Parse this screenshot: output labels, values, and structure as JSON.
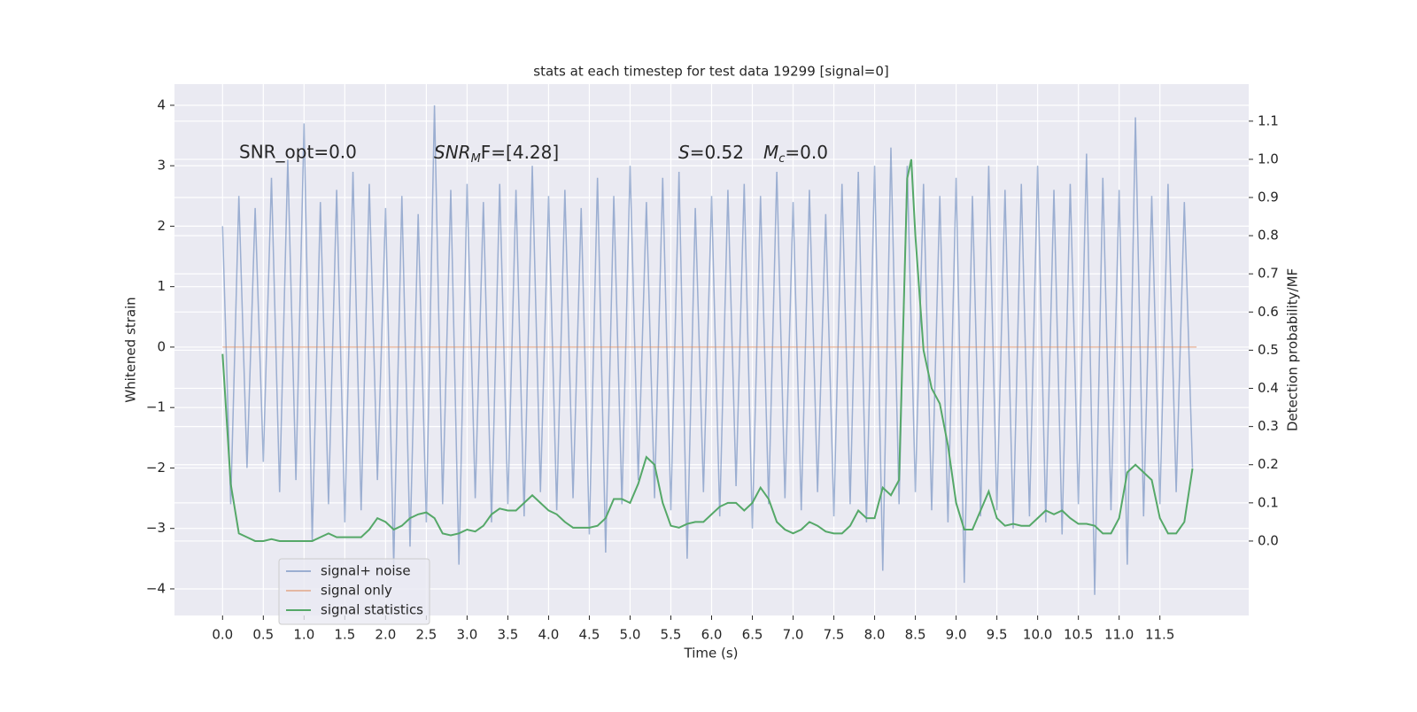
{
  "chart_data": {
    "type": "line",
    "title": "stats at each timestep for test data 19299 [signal=0]",
    "xlabel": "Time (s)",
    "ylabel": "Whitened strain",
    "y2label": "Detection probability/MF",
    "annotations": [
      "SNR_opt=0.0",
      [
        "SNR",
        "M",
        "F=[4.28]"
      ],
      [
        "S",
        "=0.52",
        "M",
        "c",
        "=0.0"
      ]
    ],
    "xlim": [
      -0.59,
      12.59
    ],
    "ylim": [
      -4.44,
      4.35
    ],
    "y2lim": [
      -0.195,
      1.197
    ],
    "xticks": [
      {
        "value": 0,
        "label": "0.0"
      },
      0.5,
      {
        "value": 1,
        "label": "1.0"
      },
      1.5,
      {
        "value": 2,
        "label": "2.0"
      },
      2.5,
      {
        "value": 3,
        "label": "3.0"
      },
      3.5,
      {
        "value": 4,
        "label": "4.0"
      },
      4.5,
      {
        "value": 5,
        "label": "5.0"
      },
      5.5,
      {
        "value": 6,
        "label": "6.0"
      },
      6.5,
      {
        "value": 7,
        "label": "7.0"
      },
      7.5,
      {
        "value": 8,
        "label": "8.0"
      },
      8.5,
      {
        "value": 9,
        "label": "9.0"
      },
      9.5,
      {
        "value": 10,
        "label": "10.0"
      },
      10.5,
      {
        "value": 11,
        "label": "11.0"
      },
      11.5
    ],
    "yticks": [
      {
        "value": -4,
        "label": "−4"
      },
      {
        "value": -3,
        "label": "−3"
      },
      {
        "value": -2,
        "label": "−2"
      },
      {
        "value": -1,
        "label": "−1"
      },
      0,
      1,
      2,
      3,
      4
    ],
    "y2ticks": [
      {
        "value": 0,
        "label": "0.0"
      },
      0.1,
      0.2,
      0.3,
      0.4,
      0.5,
      0.6,
      0.7,
      0.8,
      0.9,
      {
        "value": 1,
        "label": "1.0"
      },
      1.1
    ],
    "grid": true,
    "legend_loc": "lower left",
    "series": [
      {
        "name": "signal+ noise",
        "color": "#4c72b0",
        "x": [
          0.0,
          0.1,
          0.2,
          0.3,
          0.4,
          0.5,
          0.6,
          0.7,
          0.8,
          0.9,
          1.0,
          1.1,
          1.2,
          1.3,
          1.4,
          1.5,
          1.6,
          1.7,
          1.8,
          1.9,
          2.0,
          2.1,
          2.2,
          2.3,
          2.4,
          2.5,
          2.6,
          2.7,
          2.8,
          2.9,
          3.0,
          3.1,
          3.2,
          3.3,
          3.4,
          3.5,
          3.6,
          3.7,
          3.8,
          3.9,
          4.0,
          4.1,
          4.2,
          4.3,
          4.4,
          4.5,
          4.6,
          4.7,
          4.8,
          4.9,
          5.0,
          5.1,
          5.2,
          5.3,
          5.4,
          5.5,
          5.6,
          5.7,
          5.8,
          5.9,
          6.0,
          6.1,
          6.2,
          6.3,
          6.4,
          6.5,
          6.6,
          6.7,
          6.8,
          6.9,
          7.0,
          7.1,
          7.2,
          7.3,
          7.4,
          7.5,
          7.6,
          7.7,
          7.8,
          7.9,
          8.0,
          8.1,
          8.2,
          8.3,
          8.4,
          8.5,
          8.6,
          8.7,
          8.8,
          8.9,
          9.0,
          9.1,
          9.2,
          9.3,
          9.4,
          9.5,
          9.6,
          9.7,
          9.8,
          9.9,
          10.0,
          10.1,
          10.2,
          10.3,
          10.4,
          10.5,
          10.6,
          10.7,
          10.8,
          10.9,
          11.0,
          11.1,
          11.2,
          11.3,
          11.4,
          11.5,
          11.6,
          11.7,
          11.8,
          11.9
        ],
        "values": [
          2.0,
          -2.6,
          2.5,
          -2.0,
          2.3,
          -1.9,
          2.8,
          -2.4,
          3.1,
          -2.2,
          3.7,
          -3.2,
          2.4,
          -2.6,
          2.6,
          -2.9,
          2.9,
          -2.7,
          2.7,
          -2.2,
          2.3,
          -3.6,
          2.5,
          -3.3,
          2.2,
          -2.9,
          4.0,
          -2.6,
          2.6,
          -3.6,
          2.7,
          -2.5,
          2.4,
          -2.9,
          2.7,
          -2.6,
          2.6,
          -2.8,
          3.0,
          -2.4,
          2.5,
          -2.7,
          2.6,
          -2.5,
          2.3,
          -3.1,
          2.8,
          -3.4,
          2.5,
          -2.6,
          3.0,
          -2.2,
          2.4,
          -2.5,
          2.8,
          -2.7,
          2.9,
          -3.5,
          2.3,
          -2.4,
          2.5,
          -2.8,
          2.6,
          -2.3,
          2.7,
          -3.0,
          2.5,
          -2.6,
          2.9,
          -2.5,
          2.4,
          -2.7,
          2.6,
          -2.4,
          2.2,
          -2.8,
          2.7,
          -2.6,
          2.9,
          -2.9,
          3.0,
          -3.7,
          3.3,
          -2.6,
          3.0,
          -2.4,
          2.7,
          -2.7,
          2.5,
          -2.9,
          2.8,
          -3.9,
          2.5,
          -2.8,
          3.0,
          -2.7,
          2.6,
          -3.0,
          2.7,
          -2.8,
          3.0,
          -2.9,
          2.6,
          -3.1,
          2.7,
          -2.6,
          3.2,
          -4.1,
          2.8,
          -2.7,
          2.6,
          -3.6,
          3.8,
          -2.8,
          2.5,
          -2.6,
          2.7,
          -2.4,
          2.4,
          -2.0
        ]
      },
      {
        "name": "signal only",
        "color": "#dd8452",
        "x": [
          0.0,
          11.95
        ],
        "values": [
          0,
          0
        ]
      },
      {
        "name": "signal statistics",
        "color": "#55a868",
        "axis": "y2",
        "x": [
          0.0,
          0.1,
          0.2,
          0.3,
          0.4,
          0.5,
          0.6,
          0.7,
          0.8,
          0.9,
          1.0,
          1.1,
          1.2,
          1.3,
          1.4,
          1.5,
          1.6,
          1.7,
          1.8,
          1.9,
          2.0,
          2.1,
          2.2,
          2.3,
          2.4,
          2.5,
          2.6,
          2.7,
          2.8,
          2.9,
          3.0,
          3.1,
          3.2,
          3.3,
          3.4,
          3.5,
          3.6,
          3.7,
          3.8,
          3.9,
          4.0,
          4.1,
          4.2,
          4.3,
          4.4,
          4.5,
          4.6,
          4.7,
          4.8,
          4.9,
          5.0,
          5.1,
          5.2,
          5.3,
          5.4,
          5.5,
          5.6,
          5.7,
          5.8,
          5.9,
          6.0,
          6.1,
          6.2,
          6.3,
          6.4,
          6.5,
          6.6,
          6.7,
          6.8,
          6.9,
          7.0,
          7.1,
          7.2,
          7.3,
          7.4,
          7.5,
          7.6,
          7.7,
          7.8,
          7.9,
          8.0,
          8.1,
          8.2,
          8.3,
          8.4,
          8.45,
          8.5,
          8.6,
          8.7,
          8.8,
          8.9,
          9.0,
          9.1,
          9.2,
          9.3,
          9.4,
          9.5,
          9.6,
          9.7,
          9.8,
          9.9,
          10.0,
          10.1,
          10.2,
          10.3,
          10.4,
          10.5,
          10.6,
          10.7,
          10.8,
          10.9,
          11.0,
          11.1,
          11.2,
          11.3,
          11.4,
          11.5,
          11.6,
          11.7,
          11.8,
          11.9
        ],
        "values": [
          0.49,
          0.15,
          0.02,
          0.01,
          0.0,
          0.0,
          0.005,
          0.0,
          0.0,
          0.0,
          0.0,
          0.0,
          0.01,
          0.02,
          0.01,
          0.01,
          0.01,
          0.01,
          0.03,
          0.06,
          0.05,
          0.03,
          0.04,
          0.06,
          0.07,
          0.075,
          0.06,
          0.02,
          0.015,
          0.02,
          0.03,
          0.025,
          0.04,
          0.07,
          0.085,
          0.08,
          0.08,
          0.1,
          0.12,
          0.1,
          0.08,
          0.07,
          0.05,
          0.035,
          0.035,
          0.035,
          0.04,
          0.06,
          0.11,
          0.11,
          0.1,
          0.15,
          0.22,
          0.2,
          0.1,
          0.04,
          0.035,
          0.045,
          0.05,
          0.05,
          0.07,
          0.09,
          0.1,
          0.1,
          0.08,
          0.1,
          0.14,
          0.11,
          0.05,
          0.03,
          0.02,
          0.03,
          0.05,
          0.04,
          0.025,
          0.02,
          0.02,
          0.04,
          0.08,
          0.06,
          0.06,
          0.14,
          0.12,
          0.16,
          0.95,
          1.0,
          0.8,
          0.5,
          0.4,
          0.36,
          0.25,
          0.1,
          0.03,
          0.03,
          0.08,
          0.13,
          0.06,
          0.04,
          0.045,
          0.04,
          0.04,
          0.06,
          0.08,
          0.07,
          0.08,
          0.06,
          0.045,
          0.045,
          0.04,
          0.02,
          0.02,
          0.06,
          0.18,
          0.2,
          0.18,
          0.16,
          0.06,
          0.02,
          0.02,
          0.05,
          0.19
        ]
      }
    ]
  }
}
